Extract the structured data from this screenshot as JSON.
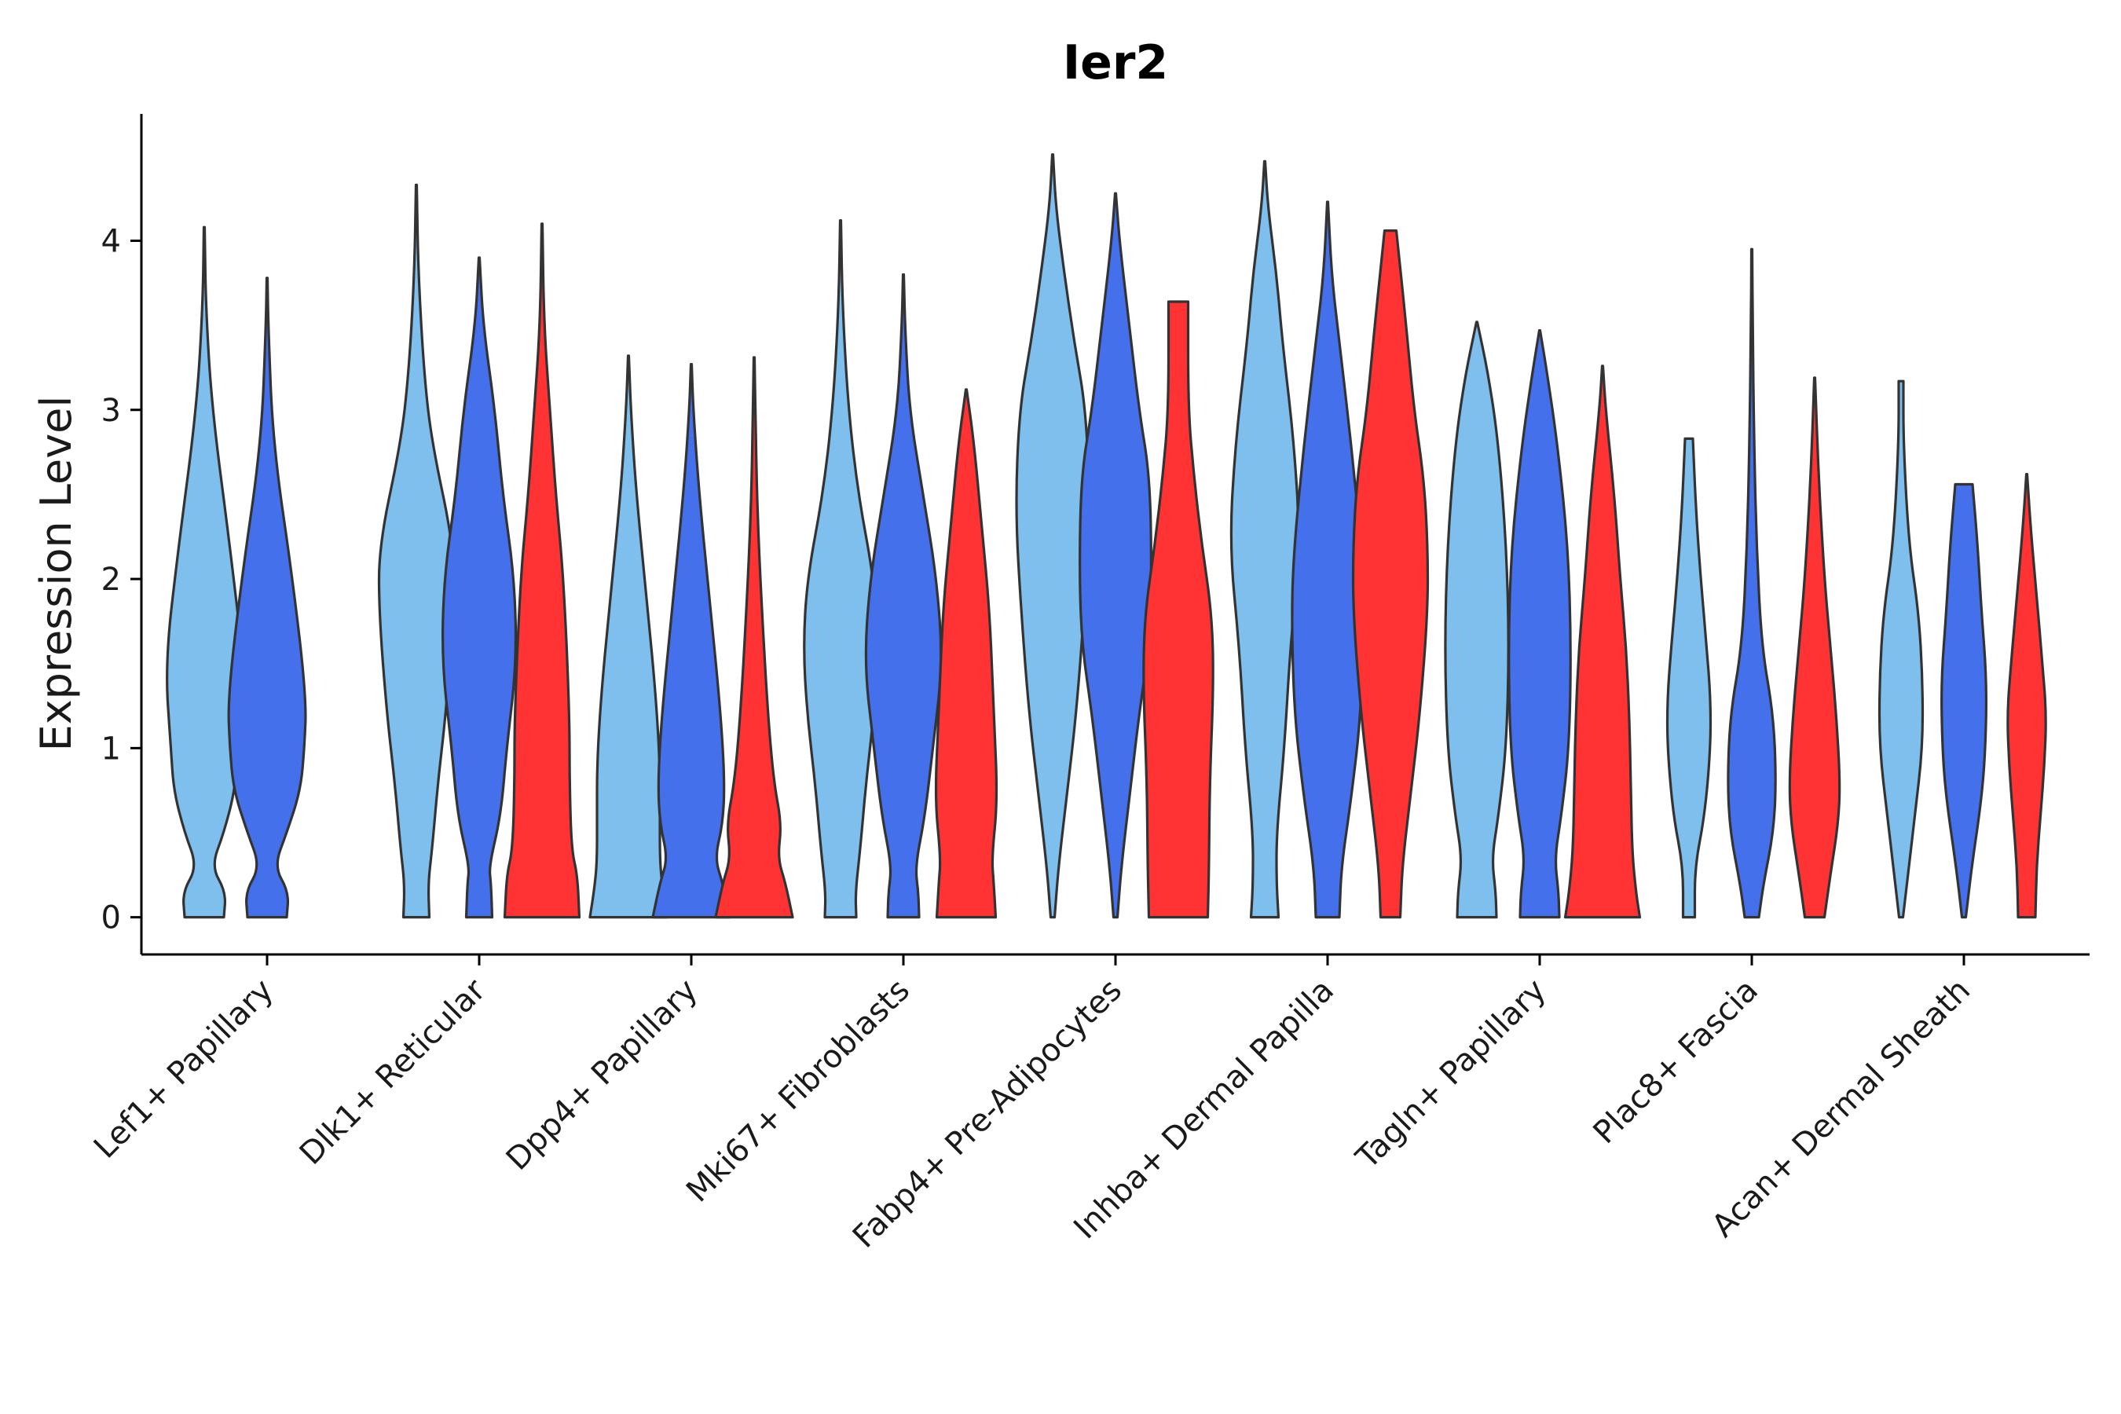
{
  "chart_data": {
    "type": "violin",
    "title": "Ier2",
    "xlabel": "",
    "ylabel": "Expression Level",
    "ylim": [
      -0.22,
      4.75
    ],
    "yticks": [
      0,
      1,
      2,
      3,
      4
    ],
    "grid": false,
    "legend": "none",
    "categories": [
      "Lef1+ Papillary",
      "Dlk1+ Reticular",
      "Dpp4+ Papillary",
      "Mki67+ Fibroblasts",
      "Fabp4+ Pre-Adipocytes",
      "Inhba+ Dermal Papilla",
      "Tagln+ Papillary",
      "Plac8+ Fascia",
      "Acan+ Dermal Sheath"
    ],
    "series_colors": [
      "#7ebfed",
      "#4470eb",
      "#ff3333"
    ],
    "violins": [
      {
        "category": 0,
        "series": 0,
        "max": 4.08,
        "profile": [
          [
            0,
            0.5
          ],
          [
            0.15,
            0.55
          ],
          [
            0.3,
            0.18
          ],
          [
            0.5,
            0.5
          ],
          [
            0.75,
            0.78
          ],
          [
            1.0,
            0.85
          ],
          [
            1.5,
            1.0
          ],
          [
            2.2,
            0.65
          ],
          [
            3.0,
            0.2
          ],
          [
            3.6,
            0.04
          ],
          [
            4.08,
            0.01
          ]
        ]
      },
      {
        "category": 0,
        "series": 1,
        "max": 3.78,
        "profile": [
          [
            0,
            0.5
          ],
          [
            0.15,
            0.55
          ],
          [
            0.3,
            0.18
          ],
          [
            0.5,
            0.5
          ],
          [
            0.75,
            0.85
          ],
          [
            1.0,
            0.95
          ],
          [
            1.3,
            1.0
          ],
          [
            2.0,
            0.65
          ],
          [
            2.8,
            0.15
          ],
          [
            3.5,
            0.03
          ],
          [
            3.78,
            0.01
          ]
        ]
      },
      {
        "category": 1,
        "series": 0,
        "max": 4.33,
        "profile": [
          [
            0,
            0.33
          ],
          [
            0.2,
            0.3
          ],
          [
            0.4,
            0.4
          ],
          [
            0.8,
            0.55
          ],
          [
            1.2,
            0.75
          ],
          [
            1.8,
            0.95
          ],
          [
            2.2,
            0.95
          ],
          [
            2.8,
            0.4
          ],
          [
            3.2,
            0.2
          ],
          [
            3.8,
            0.05
          ],
          [
            4.33,
            0.01
          ]
        ]
      },
      {
        "category": 1,
        "series": 1,
        "max": 3.9,
        "profile": [
          [
            0,
            0.33
          ],
          [
            0.2,
            0.3
          ],
          [
            0.3,
            0.25
          ],
          [
            0.6,
            0.55
          ],
          [
            1.0,
            0.7
          ],
          [
            1.5,
            0.95
          ],
          [
            2.0,
            0.9
          ],
          [
            2.5,
            0.6
          ],
          [
            3.0,
            0.4
          ],
          [
            3.5,
            0.1
          ],
          [
            3.9,
            0.01
          ]
        ]
      },
      {
        "category": 1,
        "series": 2,
        "max": 4.1,
        "profile": [
          [
            0,
            0.95
          ],
          [
            0.25,
            0.9
          ],
          [
            0.4,
            0.75
          ],
          [
            0.8,
            0.7
          ],
          [
            1.2,
            0.7
          ],
          [
            2.0,
            0.55
          ],
          [
            2.5,
            0.35
          ],
          [
            3.0,
            0.2
          ],
          [
            3.5,
            0.05
          ],
          [
            4.1,
            0.01
          ]
        ]
      },
      {
        "category": 2,
        "series": 0,
        "max": 3.32,
        "profile": [
          [
            0,
            0.98
          ],
          [
            0.2,
            0.85
          ],
          [
            0.35,
            0.8
          ],
          [
            0.6,
            0.8
          ],
          [
            0.9,
            0.8
          ],
          [
            1.3,
            0.7
          ],
          [
            1.8,
            0.5
          ],
          [
            2.5,
            0.2
          ],
          [
            3.0,
            0.06
          ],
          [
            3.32,
            0.01
          ]
        ]
      },
      {
        "category": 2,
        "series": 1,
        "max": 3.27,
        "profile": [
          [
            0,
            0.98
          ],
          [
            0.2,
            0.8
          ],
          [
            0.35,
            0.6
          ],
          [
            0.55,
            0.8
          ],
          [
            0.8,
            0.85
          ],
          [
            1.2,
            0.75
          ],
          [
            1.8,
            0.5
          ],
          [
            2.5,
            0.2
          ],
          [
            3.0,
            0.05
          ],
          [
            3.27,
            0.01
          ]
        ]
      },
      {
        "category": 2,
        "series": 2,
        "max": 3.31,
        "profile": [
          [
            0,
            0.98
          ],
          [
            0.2,
            0.8
          ],
          [
            0.35,
            0.6
          ],
          [
            0.55,
            0.7
          ],
          [
            0.8,
            0.5
          ],
          [
            1.2,
            0.35
          ],
          [
            1.8,
            0.2
          ],
          [
            2.4,
            0.08
          ],
          [
            3.0,
            0.03
          ],
          [
            3.31,
            0.01
          ]
        ]
      },
      {
        "category": 3,
        "series": 0,
        "max": 4.12,
        "profile": [
          [
            0,
            0.4
          ],
          [
            0.15,
            0.38
          ],
          [
            0.4,
            0.5
          ],
          [
            0.8,
            0.65
          ],
          [
            1.2,
            0.85
          ],
          [
            1.6,
            0.95
          ],
          [
            2.0,
            0.85
          ],
          [
            2.5,
            0.45
          ],
          [
            3.0,
            0.2
          ],
          [
            3.6,
            0.05
          ],
          [
            4.12,
            0.01
          ]
        ]
      },
      {
        "category": 3,
        "series": 1,
        "max": 3.8,
        "profile": [
          [
            0,
            0.4
          ],
          [
            0.15,
            0.38
          ],
          [
            0.3,
            0.3
          ],
          [
            0.6,
            0.55
          ],
          [
            1.0,
            0.75
          ],
          [
            1.5,
            1.0
          ],
          [
            2.0,
            0.85
          ],
          [
            2.5,
            0.5
          ],
          [
            3.0,
            0.15
          ],
          [
            3.5,
            0.04
          ],
          [
            3.8,
            0.01
          ]
        ]
      },
      {
        "category": 3,
        "series": 2,
        "max": 3.12,
        "profile": [
          [
            0,
            0.75
          ],
          [
            0.2,
            0.7
          ],
          [
            0.35,
            0.65
          ],
          [
            0.7,
            0.8
          ],
          [
            1.2,
            0.7
          ],
          [
            1.8,
            0.6
          ],
          [
            2.3,
            0.4
          ],
          [
            2.8,
            0.2
          ],
          [
            3.12,
            0.01
          ]
        ]
      },
      {
        "category": 4,
        "series": 0,
        "max": 4.51,
        "profile": [
          [
            0,
            0.05
          ],
          [
            0.3,
            0.15
          ],
          [
            0.7,
            0.35
          ],
          [
            1.2,
            0.6
          ],
          [
            1.8,
            0.8
          ],
          [
            2.4,
            0.95
          ],
          [
            3.0,
            0.85
          ],
          [
            3.4,
            0.55
          ],
          [
            3.8,
            0.3
          ],
          [
            4.2,
            0.08
          ],
          [
            4.51,
            0.01
          ]
        ]
      },
      {
        "category": 4,
        "series": 1,
        "max": 4.28,
        "profile": [
          [
            0,
            0.05
          ],
          [
            0.3,
            0.15
          ],
          [
            0.7,
            0.35
          ],
          [
            1.2,
            0.6
          ],
          [
            1.6,
            0.85
          ],
          [
            2.0,
            0.92
          ],
          [
            2.6,
            0.88
          ],
          [
            3.0,
            0.6
          ],
          [
            3.5,
            0.35
          ],
          [
            4.0,
            0.1
          ],
          [
            4.28,
            0.01
          ]
        ]
      },
      {
        "category": 4,
        "series": 2,
        "max": 3.64,
        "profile": [
          [
            0,
            0.75
          ],
          [
            0.3,
            0.78
          ],
          [
            0.8,
            0.8
          ],
          [
            1.4,
            0.9
          ],
          [
            1.8,
            0.85
          ],
          [
            2.2,
            0.6
          ],
          [
            2.6,
            0.4
          ],
          [
            3.0,
            0.25
          ],
          [
            3.64,
            0.25
          ]
        ]
      },
      {
        "category": 5,
        "series": 0,
        "max": 4.47,
        "profile": [
          [
            0,
            0.35
          ],
          [
            0.2,
            0.3
          ],
          [
            0.5,
            0.3
          ],
          [
            1.0,
            0.5
          ],
          [
            1.6,
            0.65
          ],
          [
            2.2,
            0.9
          ],
          [
            2.8,
            0.75
          ],
          [
            3.4,
            0.45
          ],
          [
            3.8,
            0.3
          ],
          [
            4.2,
            0.08
          ],
          [
            4.47,
            0.01
          ]
        ]
      },
      {
        "category": 5,
        "series": 1,
        "max": 4.23,
        "profile": [
          [
            0,
            0.3
          ],
          [
            0.3,
            0.35
          ],
          [
            0.7,
            0.6
          ],
          [
            1.2,
            0.85
          ],
          [
            1.8,
            0.92
          ],
          [
            2.2,
            0.85
          ],
          [
            2.8,
            0.6
          ],
          [
            3.4,
            0.3
          ],
          [
            3.8,
            0.1
          ],
          [
            4.23,
            0.01
          ]
        ]
      },
      {
        "category": 5,
        "series": 2,
        "max": 4.06,
        "profile": [
          [
            0,
            0.25
          ],
          [
            0.3,
            0.3
          ],
          [
            0.7,
            0.5
          ],
          [
            1.2,
            0.75
          ],
          [
            1.8,
            0.95
          ],
          [
            2.2,
            0.95
          ],
          [
            2.6,
            0.85
          ],
          [
            3.0,
            0.6
          ],
          [
            3.5,
            0.4
          ],
          [
            4.06,
            0.15
          ]
        ]
      },
      {
        "category": 6,
        "series": 0,
        "max": 3.52,
        "profile": [
          [
            0,
            0.5
          ],
          [
            0.15,
            0.48
          ],
          [
            0.35,
            0.38
          ],
          [
            0.6,
            0.55
          ],
          [
            1.0,
            0.75
          ],
          [
            1.6,
            0.82
          ],
          [
            2.2,
            0.75
          ],
          [
            2.8,
            0.55
          ],
          [
            3.2,
            0.3
          ],
          [
            3.52,
            0.01
          ]
        ]
      },
      {
        "category": 6,
        "series": 1,
        "max": 3.47,
        "profile": [
          [
            0,
            0.5
          ],
          [
            0.15,
            0.48
          ],
          [
            0.35,
            0.38
          ],
          [
            0.6,
            0.55
          ],
          [
            1.0,
            0.75
          ],
          [
            1.6,
            0.8
          ],
          [
            2.2,
            0.72
          ],
          [
            2.8,
            0.45
          ],
          [
            3.2,
            0.2
          ],
          [
            3.47,
            0.01
          ]
        ]
      },
      {
        "category": 6,
        "series": 2,
        "max": 3.26,
        "profile": [
          [
            0,
            0.95
          ],
          [
            0.15,
            0.85
          ],
          [
            0.4,
            0.75
          ],
          [
            0.8,
            0.72
          ],
          [
            1.2,
            0.68
          ],
          [
            1.6,
            0.6
          ],
          [
            2.0,
            0.45
          ],
          [
            2.5,
            0.3
          ],
          [
            3.0,
            0.08
          ],
          [
            3.26,
            0.01
          ]
        ]
      },
      {
        "category": 7,
        "series": 0,
        "max": 2.83,
        "profile": [
          [
            0,
            0.15
          ],
          [
            0.3,
            0.15
          ],
          [
            0.6,
            0.4
          ],
          [
            1.0,
            0.55
          ],
          [
            1.3,
            0.55
          ],
          [
            1.6,
            0.45
          ],
          [
            2.0,
            0.3
          ],
          [
            2.4,
            0.18
          ],
          [
            2.83,
            0.1
          ]
        ]
      },
      {
        "category": 7,
        "series": 1,
        "max": 3.95,
        "profile": [
          [
            0,
            0.18
          ],
          [
            0.2,
            0.3
          ],
          [
            0.5,
            0.55
          ],
          [
            0.8,
            0.62
          ],
          [
            1.2,
            0.55
          ],
          [
            1.6,
            0.25
          ],
          [
            2.2,
            0.12
          ],
          [
            2.8,
            0.06
          ],
          [
            3.5,
            0.02
          ],
          [
            3.95,
            0.01
          ]
        ]
      },
      {
        "category": 7,
        "series": 2,
        "max": 3.19,
        "profile": [
          [
            0,
            0.25
          ],
          [
            0.25,
            0.4
          ],
          [
            0.55,
            0.6
          ],
          [
            0.8,
            0.65
          ],
          [
            1.2,
            0.55
          ],
          [
            1.6,
            0.4
          ],
          [
            2.0,
            0.25
          ],
          [
            2.6,
            0.1
          ],
          [
            3.19,
            0.01
          ]
        ]
      },
      {
        "category": 8,
        "series": 0,
        "max": 3.17,
        "profile": [
          [
            0,
            0.05
          ],
          [
            0.3,
            0.2
          ],
          [
            0.6,
            0.35
          ],
          [
            1.0,
            0.55
          ],
          [
            1.4,
            0.55
          ],
          [
            1.8,
            0.45
          ],
          [
            2.2,
            0.2
          ],
          [
            2.8,
            0.06
          ],
          [
            3.17,
            0.06
          ]
        ]
      },
      {
        "category": 8,
        "series": 1,
        "max": 2.56,
        "profile": [
          [
            0,
            0.05
          ],
          [
            0.3,
            0.2
          ],
          [
            0.7,
            0.45
          ],
          [
            1.0,
            0.55
          ],
          [
            1.4,
            0.58
          ],
          [
            1.8,
            0.45
          ],
          [
            2.2,
            0.35
          ],
          [
            2.56,
            0.22
          ]
        ]
      },
      {
        "category": 8,
        "series": 2,
        "max": 2.62,
        "profile": [
          [
            0,
            0.22
          ],
          [
            0.3,
            0.25
          ],
          [
            0.6,
            0.35
          ],
          [
            0.9,
            0.45
          ],
          [
            1.2,
            0.5
          ],
          [
            1.5,
            0.4
          ],
          [
            1.9,
            0.25
          ],
          [
            2.3,
            0.1
          ],
          [
            2.62,
            0.01
          ]
        ]
      }
    ]
  }
}
